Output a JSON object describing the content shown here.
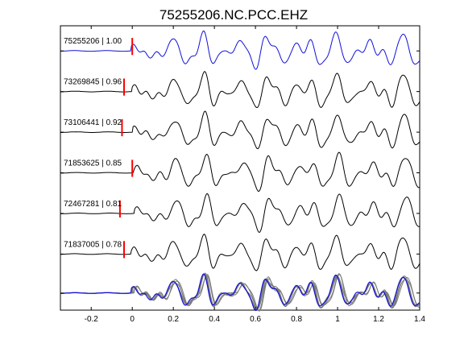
{
  "title": "75255206.NC.PCC.EHZ",
  "chart_data": {
    "type": "line",
    "title": "75255206.NC.PCC.EHZ",
    "xlabel": "",
    "ylabel": "",
    "xlim": [
      -0.35,
      1.4
    ],
    "xticks": [
      -0.2,
      0,
      0.2,
      0.4,
      0.6,
      0.8,
      1,
      1.2,
      1.4
    ],
    "xtick_labels": [
      "-0.2",
      "0",
      "0.2",
      "0.4",
      "0.6",
      "0.8",
      "1",
      "1.2",
      "1.4"
    ],
    "grid": false,
    "colors": {
      "reference": "#1010d8",
      "other": "#000000",
      "overlay_other": "#7a7a7a",
      "pick": "#ff0000"
    },
    "series": [
      {
        "name": "75255206 | 1.00",
        "pick_time": 0.0,
        "color": "#1010d8"
      },
      {
        "name": "73269845 | 0.96",
        "pick_time": -0.04,
        "color": "#000000"
      },
      {
        "name": "73106441 | 0.92",
        "pick_time": -0.05,
        "color": "#000000"
      },
      {
        "name": "71853625 | 0.85",
        "pick_time": 0.0,
        "color": "#000000"
      },
      {
        "name": "72467281 | 0.81",
        "pick_time": -0.06,
        "color": "#000000"
      },
      {
        "name": "71837005 | 0.78",
        "pick_time": -0.04,
        "color": "#000000"
      }
    ],
    "stack": "overlay of all traces at bottom"
  }
}
